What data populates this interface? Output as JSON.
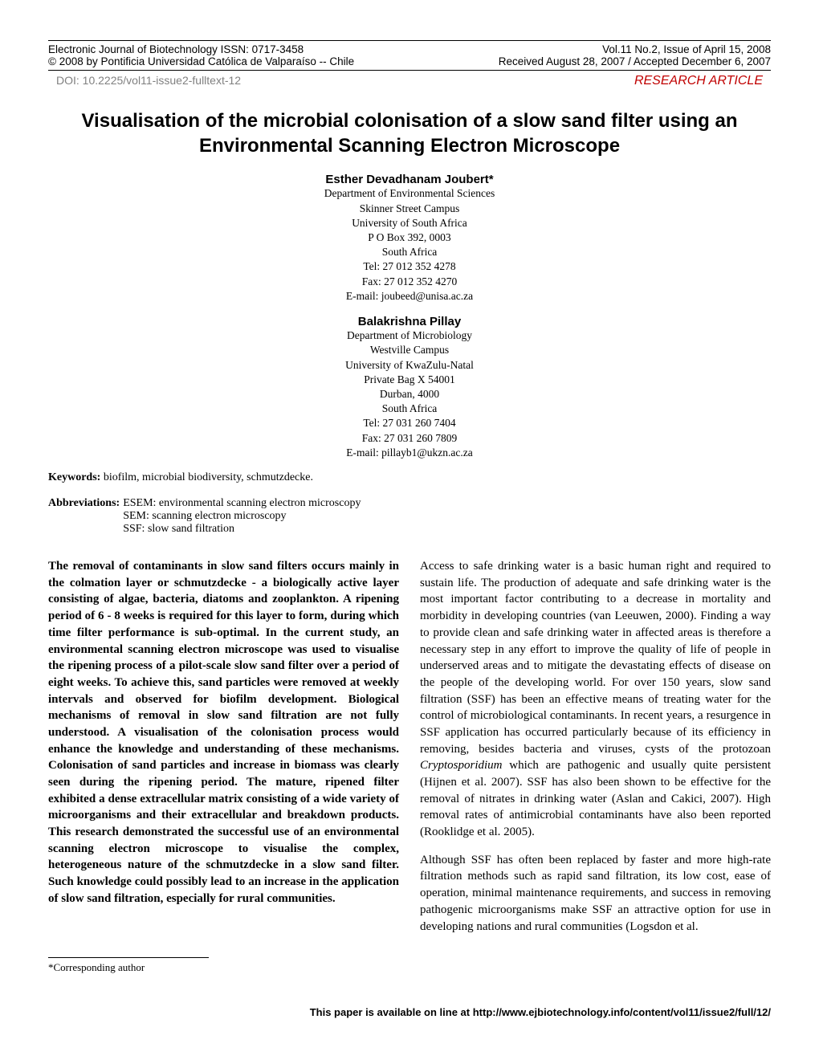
{
  "header": {
    "journal_left1": "Electronic Journal of Biotechnology ISSN: 0717-3458",
    "journal_right1": "Vol.11 No.2, Issue of April 15, 2008",
    "journal_left2": "© 2008 by Pontificia Universidad Católica de Valparaíso -- Chile",
    "journal_right2": "Received August 28, 2007 / Accepted December 6, 2007",
    "doi": "DOI: 10.2225/vol11-issue2-fulltext-12",
    "article_type": "RESEARCH ARTICLE"
  },
  "title": "Visualisation of the microbial colonisation of a slow sand filter using an Environmental Scanning Electron Microscope",
  "authors": [
    {
      "name": "Esther Devadhanam Joubert*",
      "lines": [
        "Department of Environmental Sciences",
        "Skinner Street Campus",
        "University of South Africa",
        "P O Box 392, 0003",
        "South Africa",
        "Tel: 27 012 352 4278",
        "Fax: 27 012 352 4270",
        "E-mail: joubeed@unisa.ac.za"
      ]
    },
    {
      "name": "Balakrishna Pillay",
      "lines": [
        "Department of Microbiology",
        "Westville Campus",
        "University of KwaZulu-Natal",
        "Private Bag X 54001",
        "Durban, 4000",
        "South Africa",
        "Tel: 27 031 260 7404",
        "Fax: 27 031 260 7809",
        "E-mail: pillayb1@ukzn.ac.za"
      ]
    }
  ],
  "keywords_label": "Keywords:",
  "keywords": " biofilm, microbial biodiversity, schmutzdecke.",
  "abbreviations_label": "Abbreviations:",
  "abbreviations": [
    "ESEM: environmental scanning electron microscopy",
    "SEM: scanning electron microscopy",
    "SSF: slow sand filtration"
  ],
  "abstract": "The removal of contaminants in slow sand filters occurs mainly in the colmation layer or schmutzdecke - a biologically active layer consisting of algae, bacteria, diatoms and zooplankton. A ripening period of 6 - 8 weeks is required for this layer to form, during which time filter performance is sub-optimal. In the current study, an environmental scanning electron microscope was used to visualise the ripening process of a pilot-scale slow sand filter over a period of eight weeks. To achieve this, sand particles were removed at weekly intervals and observed for biofilm development. Biological mechanisms of removal in slow sand filtration are not fully understood. A visualisation of the colonisation process would enhance the knowledge and understanding of these mechanisms. Colonisation of sand particles and increase in biomass was clearly seen during the ripening period. The mature, ripened filter exhibited a dense extracellular matrix consisting of a wide variety of microorganisms and their extracellular and breakdown products. This research demonstrated the successful use of an environmental scanning electron microscope to visualise the complex, heterogeneous nature of the schmutzdecke in a slow sand filter. Such knowledge could possibly lead to an increase in the application of slow sand filtration, especially for rural communities.",
  "body_p1_a": "Access to safe drinking water is a basic human right and required to sustain life. The production of adequate and safe drinking water is the most important factor contributing to a decrease in mortality and morbidity in developing countries (van Leeuwen, 2000). Finding a way to provide clean and safe drinking water in affected areas is therefore a necessary step in any effort to improve the quality of life of people in underserved areas and to mitigate the devastating effects of disease on the people of the developing world. For over 150 years, slow sand filtration (SSF) has been an effective means of treating water for the control of microbiological contaminants. In recent years, a resurgence in SSF application has occurred particularly because of its efficiency in removing, besides bacteria and viruses, cysts of the protozoan ",
  "body_p1_italic": "Cryptosporidium",
  "body_p1_b": " which are pathogenic and usually quite persistent (Hijnen et al. 2007). SSF has also been shown to be effective for the removal of nitrates in drinking water (Aslan and Cakici, 2007). High removal rates of antimicrobial contaminants have also been reported (Rooklidge et al. 2005).",
  "body_p2": "Although SSF has often been replaced by faster and more high-rate filtration methods such as rapid sand filtration, its low cost, ease of operation, minimal maintenance requirements, and success in removing pathogenic microorganisms make SSF an attractive option for use in developing nations and rural communities (Logsdon et al.",
  "corresponding": "*Corresponding author",
  "footer_url": "This paper is available on line at http://www.ejbiotechnology.info/content/vol11/issue2/full/12/"
}
